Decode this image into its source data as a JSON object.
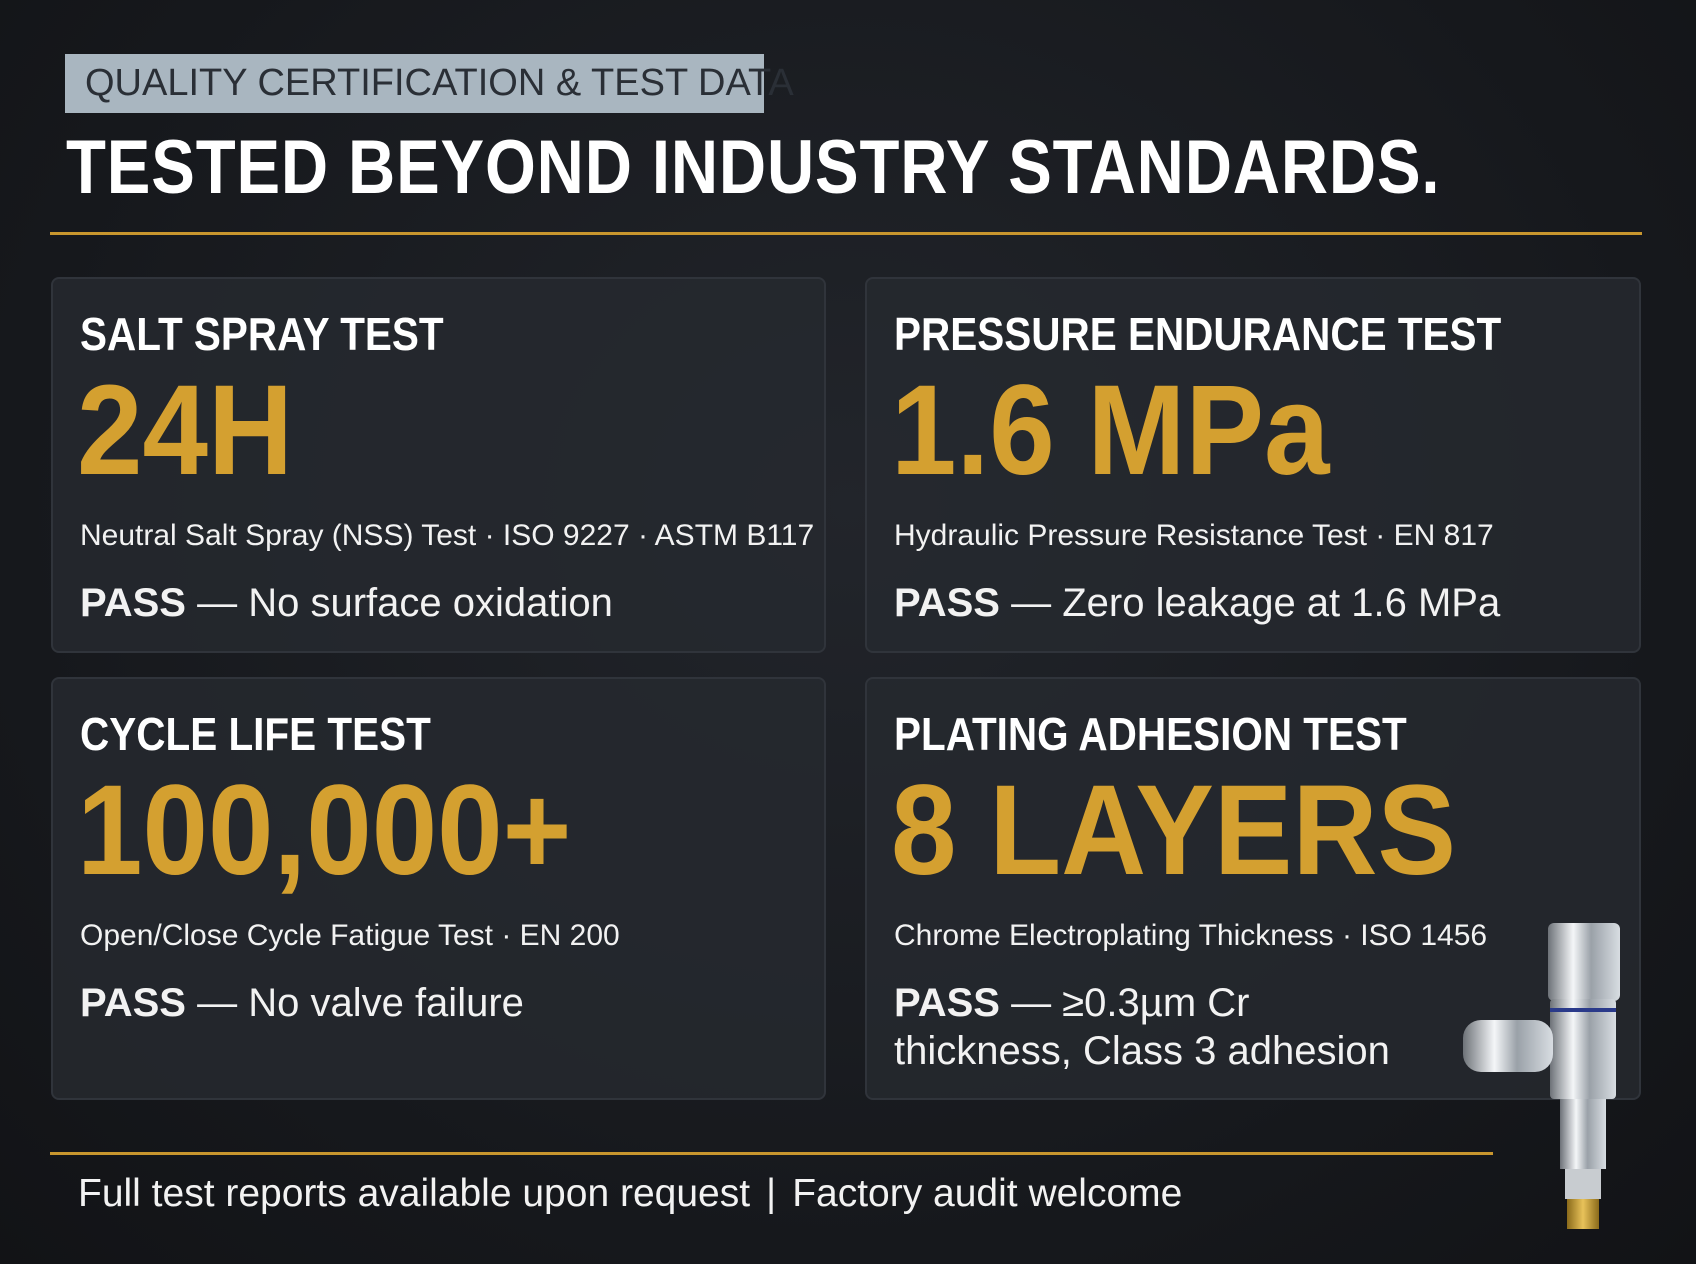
{
  "header": {
    "tag": "QUALITY CERTIFICATION & TEST DATA",
    "title": "TESTED BEYOND INDUSTRY STANDARDS."
  },
  "cards": [
    {
      "title": "SALT SPRAY TEST",
      "value": "24H",
      "standard": "Neutral Salt Spray (NSS) Test · ISO 9227 · ASTM B117",
      "status": "PASS",
      "detail": "— No surface oxidation"
    },
    {
      "title": "PRESSURE ENDURANCE TEST",
      "value": "1.6 MPa",
      "standard": "Hydraulic Pressure Resistance Test · EN 817",
      "status": "PASS",
      "detail": "— Zero leakage at 1.6 MPa"
    },
    {
      "title": "CYCLE LIFE TEST",
      "value": "100,000+",
      "standard": "Open/Close Cycle Fatigue Test · EN 200",
      "status": "PASS",
      "detail": "— No valve failure"
    },
    {
      "title": "PLATING ADHESION TEST",
      "value": "8 LAYERS",
      "standard": "Chrome Electroplating Thickness · ISO 1456",
      "status": "PASS",
      "detail": "— ≥0.3µm Cr thickness, Class 3 adhesion"
    }
  ],
  "footer": {
    "left": "Full test reports available upon request",
    "separator": "|",
    "right": "Factory audit welcome"
  }
}
